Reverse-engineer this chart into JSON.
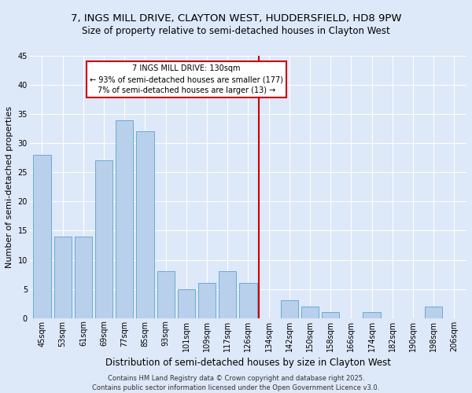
{
  "title1": "7, INGS MILL DRIVE, CLAYTON WEST, HUDDERSFIELD, HD8 9PW",
  "title2": "Size of property relative to semi-detached houses in Clayton West",
  "xlabel": "Distribution of semi-detached houses by size in Clayton West",
  "ylabel": "Number of semi-detached properties",
  "categories": [
    "45sqm",
    "53sqm",
    "61sqm",
    "69sqm",
    "77sqm",
    "85sqm",
    "93sqm",
    "101sqm",
    "109sqm",
    "117sqm",
    "126sqm",
    "134sqm",
    "142sqm",
    "150sqm",
    "158sqm",
    "166sqm",
    "174sqm",
    "182sqm",
    "190sqm",
    "198sqm",
    "206sqm"
  ],
  "values": [
    28,
    14,
    14,
    27,
    34,
    32,
    8,
    5,
    6,
    8,
    6,
    0,
    3,
    2,
    1,
    0,
    1,
    0,
    0,
    2,
    0
  ],
  "bar_color": "#b8d0eb",
  "bar_edge_color": "#6aabd2",
  "highlight_label": "7 INGS MILL DRIVE: 130sqm",
  "annotation_line1": "← 93% of semi-detached houses are smaller (177)",
  "annotation_line2": "7% of semi-detached houses are larger (13) →",
  "annotation_box_color": "#ffffff",
  "annotation_box_edge": "#cc0000",
  "vline_color": "#cc0000",
  "vline_x_index": 10.5,
  "ylim": [
    0,
    45
  ],
  "yticks": [
    0,
    5,
    10,
    15,
    20,
    25,
    30,
    35,
    40,
    45
  ],
  "bg_color": "#dde8f8",
  "plot_bg": "#dde8f8",
  "footer1": "Contains HM Land Registry data © Crown copyright and database right 2025.",
  "footer2": "Contains public sector information licensed under the Open Government Licence v3.0.",
  "title1_fontsize": 9.5,
  "title2_fontsize": 8.5,
  "xlabel_fontsize": 8.5,
  "ylabel_fontsize": 8,
  "tick_fontsize": 7,
  "footer_fontsize": 6,
  "ann_fontsize": 7
}
